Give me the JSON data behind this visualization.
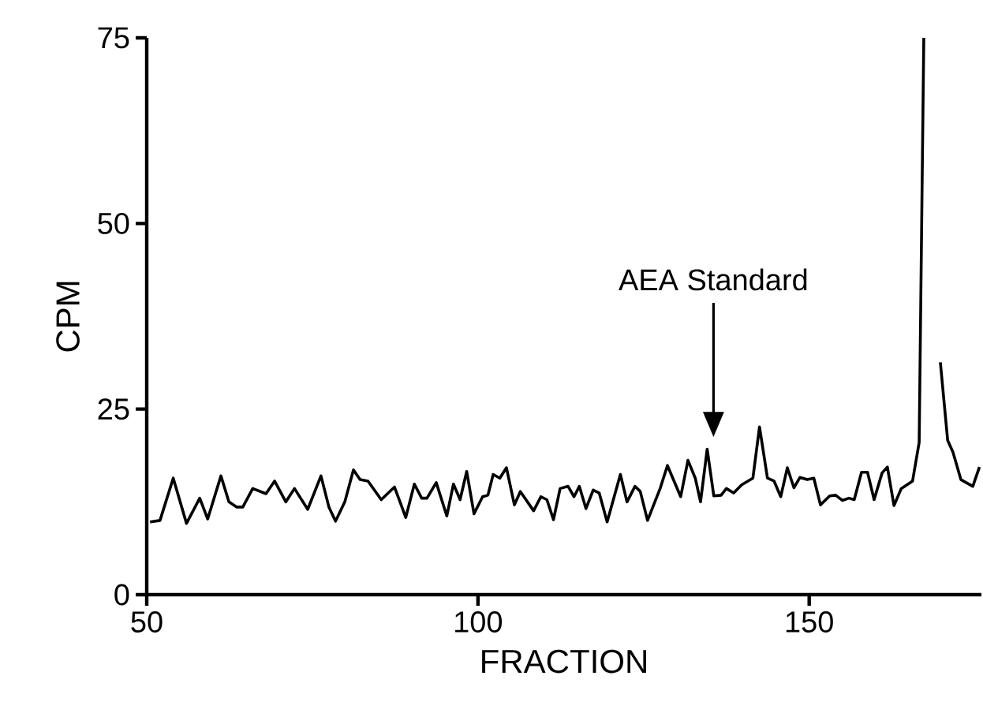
{
  "chart_data": {
    "type": "line",
    "xlabel": "FRACTION",
    "ylabel": "CPM",
    "xlim": [
      50,
      176
    ],
    "ylim": [
      0,
      75
    ],
    "xticks": [
      50,
      100,
      150
    ],
    "yticks": [
      0,
      25,
      50,
      75
    ],
    "annotations": [
      "AEA Standard"
    ],
    "x": [
      50.5,
      52,
      54,
      56,
      58,
      59.2,
      61.2,
      62.4,
      63.6,
      64.5,
      66,
      68,
      69.3,
      71,
      72.3,
      74.3,
      76.3,
      77.5,
      78.5,
      79.9,
      81.2,
      82.2,
      83.4,
      85.4,
      87.4,
      89.1,
      90.4,
      91.5,
      92.3,
      93.7,
      95.3,
      96.3,
      97.3,
      98.3,
      99.4,
      100.7,
      101.5,
      102.3,
      103.3,
      104.3,
      105.5,
      106.4,
      108.4,
      109.5,
      110.4,
      111.4,
      112.4,
      113.6,
      114.5,
      115.3,
      116.3,
      117.4,
      118.3,
      119.5,
      121.5,
      122.5,
      123.7,
      124.5,
      125.6,
      126.7,
      127.5,
      128.6,
      130.6,
      131.7,
      132.8,
      133.6,
      134.6,
      135.6,
      136.7,
      137.5,
      138.6,
      139.8,
      141.5,
      142.5,
      143.7,
      144.7,
      145.7,
      146.7,
      147.7,
      148.6,
      149.7,
      150.7,
      151.7,
      153.1,
      154.0,
      155.0,
      156.0,
      156.8,
      157.9,
      158.8,
      159.8,
      161.0,
      161.8,
      162.8,
      163.9,
      165.6,
      166.6,
      167.3,
      168.5,
      169.8,
      170.9,
      171.7,
      172.9,
      174.7,
      175.7
    ],
    "series": [
      {
        "color": "#000000",
        "values": [
          9.8,
          10,
          15.7,
          9.6,
          13,
          10.2,
          16,
          12.5,
          11.8,
          11.8,
          14.3,
          13.6,
          15.3,
          12.5,
          14.3,
          11.5,
          16,
          11.8,
          9.9,
          12.5,
          16.8,
          15.5,
          15.3,
          12.8,
          14.5,
          10.4,
          14.9,
          13,
          13,
          15.1,
          10.6,
          14.9,
          12.8,
          16.6,
          10.9,
          13.2,
          13.4,
          16.2,
          15.7,
          17.1,
          12.1,
          13.9,
          11.3,
          13.2,
          12.8,
          10.1,
          14.3,
          14.6,
          13.2,
          14.6,
          11.6,
          14.1,
          13.7,
          9.8,
          16.2,
          12.5,
          14.6,
          13.9,
          10,
          12.5,
          14.3,
          17.4,
          13.2,
          18.1,
          15.7,
          12.5,
          19.6,
          13.3,
          13.4,
          14.3,
          13.7,
          14.8,
          15.7,
          22.6,
          15.7,
          15.3,
          13.2,
          17.1,
          14.4,
          15.8,
          15.5,
          15.7,
          12.1,
          13.3,
          13.4,
          12.7,
          13,
          12.8,
          16.5,
          16.5,
          12.8,
          16.4,
          17.2,
          12,
          14.3,
          15.3,
          20.5,
          75,
          null,
          31.3,
          20.8,
          19.2,
          15.5,
          14.6,
          17.2
        ]
      }
    ]
  }
}
